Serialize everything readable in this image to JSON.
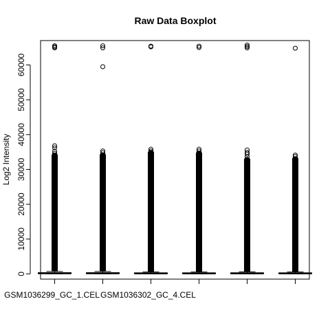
{
  "chart_data": {
    "type": "boxplot",
    "title": "Raw Data Boxplot",
    "xlabel": "",
    "ylabel": "Log2 Intensity",
    "ylim": [
      -1500,
      67000
    ],
    "y_ticks": [
      0,
      10000,
      20000,
      30000,
      40000,
      50000,
      60000
    ],
    "y_tick_labels": [
      "0",
      "10000",
      "20000",
      "30000",
      "40000",
      "50000",
      "60000"
    ],
    "categories": [
      "GSM1036299_GC_1.CEL",
      "",
      "GSM1036302_GC_4.CEL",
      "",
      "",
      ""
    ],
    "x_tick_labels": [
      {
        "index": 0,
        "text": "GSM1036299_GC_1.CEL"
      },
      {
        "index": 2,
        "text": "GSM1036302_GC_4.CEL"
      }
    ],
    "boxes": [
      {
        "median": 180,
        "q1": 80,
        "q3": 350,
        "whisker_low": 20,
        "whisker_high": 700,
        "outlier_dense_to": 34200,
        "outliers": [
          34600,
          35200,
          36200,
          36800,
          64900,
          65200,
          65500
        ]
      },
      {
        "median": 180,
        "q1": 80,
        "q3": 350,
        "whisker_low": 20,
        "whisker_high": 700,
        "outlier_dense_to": 34300,
        "outliers": [
          34800,
          35300,
          59500,
          64900,
          65500
        ]
      },
      {
        "median": 150,
        "q1": 70,
        "q3": 300,
        "whisker_low": 20,
        "whisker_high": 550,
        "outlier_dense_to": 35000,
        "outliers": [
          35300,
          35800,
          65200,
          65400
        ]
      },
      {
        "median": 150,
        "q1": 70,
        "q3": 300,
        "whisker_low": 20,
        "whisker_high": 550,
        "outlier_dense_to": 34800,
        "outliers": [
          35300,
          35800,
          65000,
          65400
        ]
      },
      {
        "median": 160,
        "q1": 75,
        "q3": 320,
        "whisker_low": 20,
        "whisker_high": 600,
        "outlier_dense_to": 33000,
        "outliers": [
          33700,
          34400,
          34900,
          35600,
          64900,
          65300,
          65700
        ]
      },
      {
        "median": 150,
        "q1": 70,
        "q3": 300,
        "whisker_low": 20,
        "whisker_high": 550,
        "outlier_dense_to": 33200,
        "outliers": [
          33700,
          34100,
          64800
        ]
      }
    ],
    "grid": false,
    "legend": "none"
  }
}
